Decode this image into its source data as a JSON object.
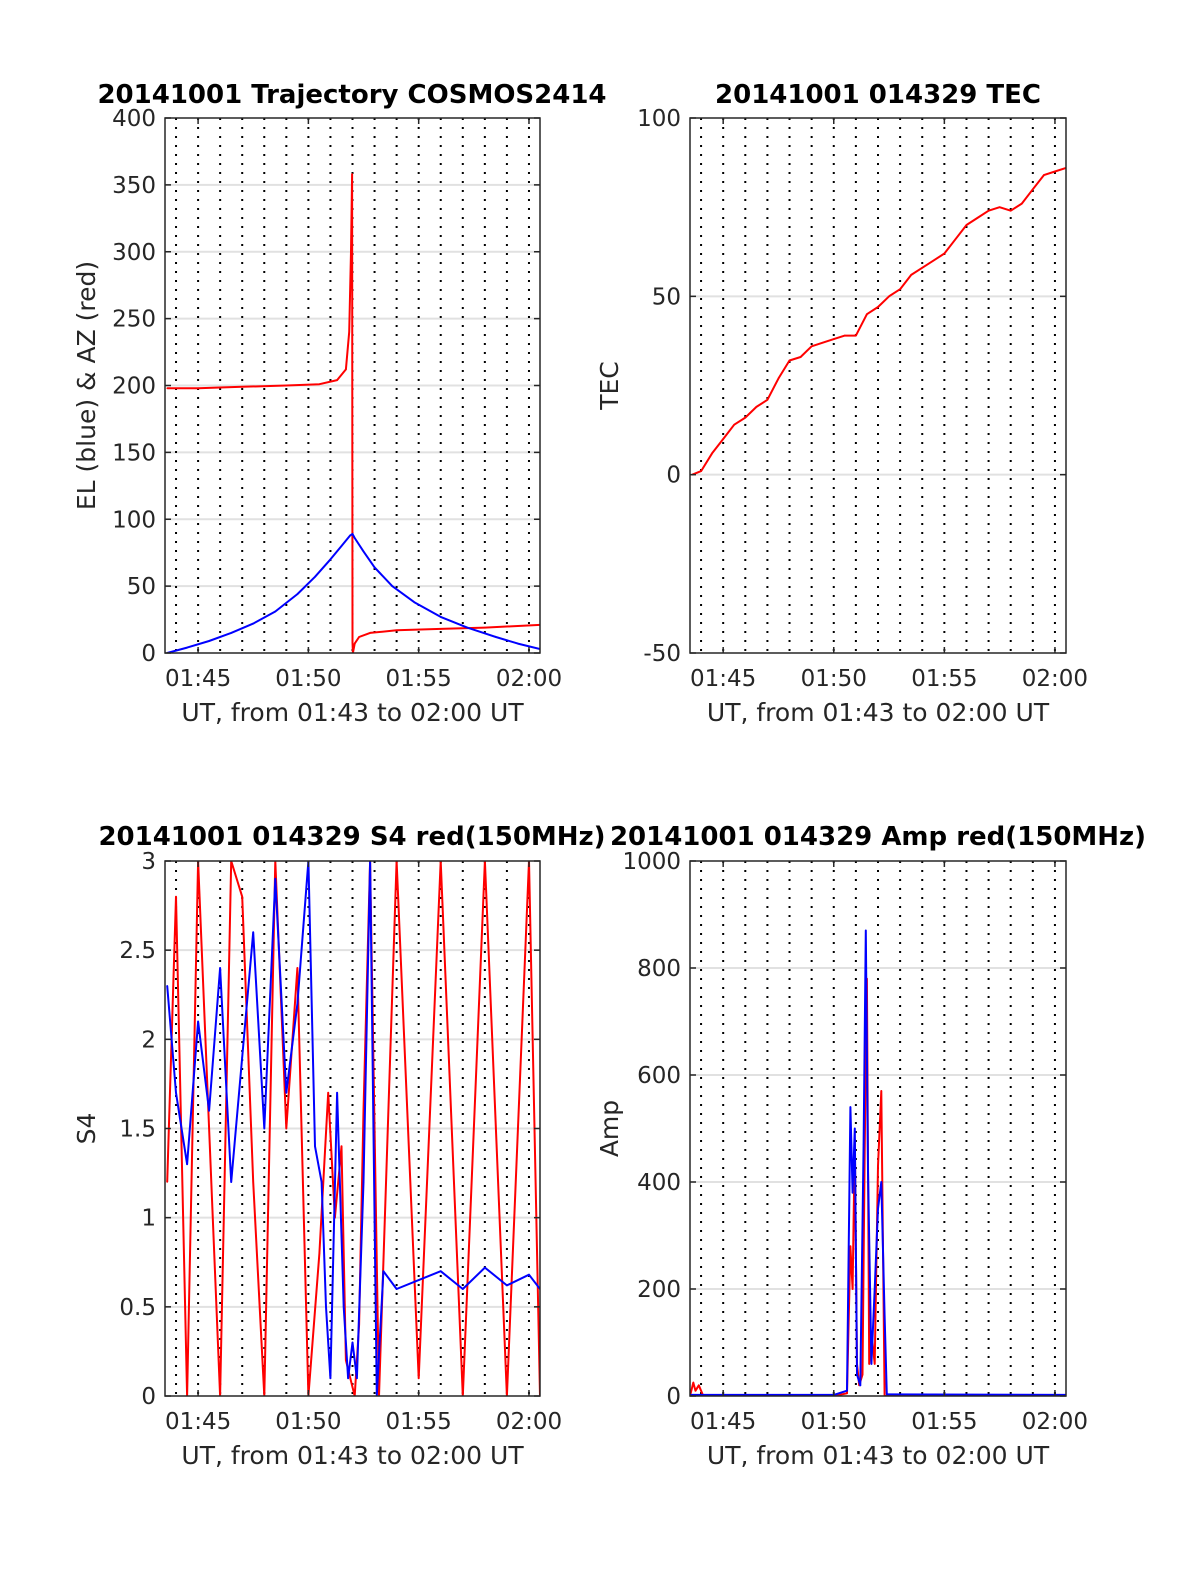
{
  "figure": {
    "panels": [
      {
        "id": "trajectory",
        "title": "20141001 Trajectory COSMOS2414",
        "xlabel": "UT, from 01:43 to 02:00 UT",
        "ylabel": "EL (blue) & AZ (red)"
      },
      {
        "id": "tec",
        "title": "20141001 014329 TEC",
        "xlabel": "UT, from 01:43 to 02:00 UT",
        "ylabel": "TEC"
      },
      {
        "id": "s4",
        "title": "20141001 014329 S4 red(150MHz)",
        "xlabel": "UT, from 01:43 to 02:00 UT",
        "ylabel": "S4"
      },
      {
        "id": "amp",
        "title": "20141001 014329 Amp red(150MHz)",
        "xlabel": "UT, from 01:43 to 02:00 UT",
        "ylabel": "Amp"
      }
    ]
  },
  "chart_data": [
    {
      "type": "line",
      "title": "20141001 Trajectory COSMOS2414",
      "xlabel": "UT, from 01:43 to 02:00 UT",
      "ylabel": "EL (blue) & AZ (red)",
      "xlim_minutes": [
        103.5,
        120.5
      ],
      "ylim": [
        0,
        400
      ],
      "x_ticks": [
        {
          "minute": 105,
          "label": "01:45"
        },
        {
          "minute": 110,
          "label": "01:50"
        },
        {
          "minute": 115,
          "label": "01:55"
        },
        {
          "minute": 120,
          "label": "02:00"
        }
      ],
      "y_ticks": [
        0,
        50,
        100,
        150,
        200,
        250,
        300,
        350,
        400
      ],
      "grid": true,
      "series": [
        {
          "name": "AZ",
          "color": "#ff0000",
          "x": [
            103.6,
            105,
            107,
            109,
            110.5,
            111.3,
            111.7,
            111.85,
            111.93,
            111.98,
            112.0,
            112.02,
            112.1,
            112.3,
            112.8,
            114,
            116,
            118,
            120.5
          ],
          "y": [
            198,
            198,
            199,
            200,
            201,
            204,
            212,
            240,
            300,
            358,
            8,
            0,
            7,
            12,
            15,
            17,
            18,
            19,
            21
          ]
        },
        {
          "name": "EL",
          "color": "#0000ff",
          "x": [
            103.6,
            104.5,
            105.5,
            106.5,
            107.5,
            108.5,
            109.5,
            110.3,
            111.0,
            111.5,
            111.9,
            112.0,
            112.1,
            112.5,
            113.0,
            113.8,
            114.8,
            116.0,
            117.2,
            118.5,
            119.5,
            120.5
          ],
          "y": [
            0,
            4,
            9,
            15,
            22,
            31,
            44,
            57,
            70,
            80,
            88,
            89,
            86,
            76,
            64,
            50,
            38,
            27,
            19,
            12,
            7,
            3
          ]
        }
      ]
    },
    {
      "type": "line",
      "title": "20141001 014329 TEC",
      "xlabel": "UT, from 01:43 to 02:00 UT",
      "ylabel": "TEC",
      "xlim_minutes": [
        103.5,
        120.5
      ],
      "ylim": [
        -50,
        100
      ],
      "x_ticks": [
        {
          "minute": 105,
          "label": "01:45"
        },
        {
          "minute": 110,
          "label": "01:50"
        },
        {
          "minute": 115,
          "label": "01:55"
        },
        {
          "minute": 120,
          "label": "02:00"
        }
      ],
      "y_ticks": [
        -50,
        0,
        50,
        100
      ],
      "grid": true,
      "series": [
        {
          "name": "TEC",
          "color": "#ff0000",
          "x": [
            103.6,
            104.0,
            104.5,
            105,
            105.5,
            106,
            106.5,
            107,
            107.5,
            108,
            108.5,
            109,
            109.5,
            110,
            110.5,
            111,
            111.5,
            112,
            112.5,
            113,
            113.5,
            114,
            114.5,
            115,
            115.5,
            116,
            116.5,
            117,
            117.5,
            118,
            118.5,
            119,
            119.5,
            120,
            120.5
          ],
          "y": [
            0,
            1,
            6,
            10,
            14,
            16,
            19,
            21,
            27,
            32,
            33,
            36,
            37,
            38,
            39,
            39,
            45,
            47,
            50,
            52,
            56,
            58,
            60,
            62,
            66,
            70,
            72,
            74,
            75,
            74,
            76,
            80,
            84,
            85,
            86
          ]
        }
      ]
    },
    {
      "type": "line",
      "title": "20141001 014329 S4 red(150MHz)",
      "xlabel": "UT, from 01:43 to 02:00 UT",
      "ylabel": "S4",
      "xlim_minutes": [
        103.5,
        120.5
      ],
      "ylim": [
        0,
        3
      ],
      "x_ticks": [
        {
          "minute": 105,
          "label": "01:45"
        },
        {
          "minute": 110,
          "label": "01:50"
        },
        {
          "minute": 115,
          "label": "01:55"
        },
        {
          "minute": 120,
          "label": "02:00"
        }
      ],
      "y_ticks": [
        0,
        0.5,
        1,
        1.5,
        2,
        2.5,
        3
      ],
      "grid": true,
      "series": [
        {
          "name": "red (150MHz)",
          "color": "#ff0000",
          "x": [
            103.6,
            104.0,
            104.5,
            105.0,
            105.5,
            106.0,
            106.5,
            107.0,
            107.5,
            108.0,
            108.5,
            109.0,
            109.5,
            110.0,
            110.5,
            110.9,
            111.2,
            111.5,
            111.7,
            111.9,
            112.1,
            112.3,
            112.5,
            112.8,
            113.2,
            114.0,
            115.0,
            116.0,
            117.0,
            118.0,
            119.0,
            120.0,
            120.5
          ],
          "y": [
            1.2,
            2.8,
            0.0,
            3.0,
            1.5,
            0.0,
            3.0,
            2.8,
            1.2,
            0.0,
            3.0,
            1.5,
            2.4,
            0.0,
            0.8,
            1.7,
            1.0,
            1.4,
            0.2,
            0.1,
            0.0,
            0.4,
            1.6,
            3.0,
            0.0,
            3.0,
            0.1,
            3.0,
            0.0,
            3.0,
            0.0,
            3.0,
            0.0
          ]
        },
        {
          "name": "blue",
          "color": "#0000ff",
          "x": [
            103.6,
            104.0,
            104.5,
            105.0,
            105.5,
            106.0,
            106.5,
            107.0,
            107.5,
            108.0,
            108.5,
            109.0,
            109.5,
            110.0,
            110.3,
            110.6,
            110.8,
            111.0,
            111.3,
            111.6,
            111.8,
            112.0,
            112.2,
            112.5,
            112.8,
            113.1,
            113.4,
            114.0,
            115.0,
            116.0,
            117.0,
            118.0,
            119.0,
            120.0,
            120.5
          ],
          "y": [
            2.3,
            1.7,
            1.3,
            2.1,
            1.6,
            2.4,
            1.2,
            1.9,
            2.6,
            1.5,
            2.9,
            1.7,
            2.2,
            3.0,
            1.4,
            1.2,
            0.5,
            0.1,
            1.7,
            0.5,
            0.1,
            0.3,
            0.1,
            1.2,
            3.0,
            0.0,
            0.7,
            0.6,
            0.65,
            0.7,
            0.6,
            0.72,
            0.62,
            0.68,
            0.6
          ]
        }
      ]
    },
    {
      "type": "line",
      "title": "20141001 014329 Amp red(150MHz)",
      "xlabel": "UT, from 01:43 to 02:00 UT",
      "ylabel": "Amp",
      "xlim_minutes": [
        103.5,
        120.5
      ],
      "ylim": [
        0,
        1000
      ],
      "x_ticks": [
        {
          "minute": 105,
          "label": "01:45"
        },
        {
          "minute": 110,
          "label": "01:50"
        },
        {
          "minute": 115,
          "label": "01:55"
        },
        {
          "minute": 120,
          "label": "02:00"
        }
      ],
      "y_ticks": [
        0,
        200,
        400,
        600,
        800,
        1000
      ],
      "grid": true,
      "series": [
        {
          "name": "red (150MHz)",
          "color": "#ff0000",
          "x": [
            103.5,
            103.65,
            103.75,
            103.9,
            104.1,
            110.0,
            110.6,
            110.75,
            110.85,
            110.95,
            111.05,
            111.15,
            111.3,
            111.4,
            111.5,
            111.6,
            111.7,
            111.85,
            112.0,
            112.15,
            112.3,
            120.5
          ],
          "y": [
            0,
            25,
            10,
            20,
            0,
            0,
            5,
            280,
            200,
            480,
            60,
            20,
            40,
            460,
            780,
            60,
            120,
            60,
            430,
            570,
            0,
            0
          ]
        },
        {
          "name": "blue",
          "color": "#0000ff",
          "x": [
            103.5,
            110.0,
            110.6,
            110.75,
            110.85,
            110.95,
            111.05,
            111.2,
            111.35,
            111.45,
            111.55,
            111.7,
            111.85,
            112.0,
            112.15,
            112.3,
            112.4,
            120.5
          ],
          "y": [
            2,
            2,
            10,
            540,
            380,
            500,
            40,
            20,
            470,
            870,
            420,
            60,
            200,
            350,
            400,
            150,
            3,
            2
          ]
        }
      ]
    }
  ]
}
